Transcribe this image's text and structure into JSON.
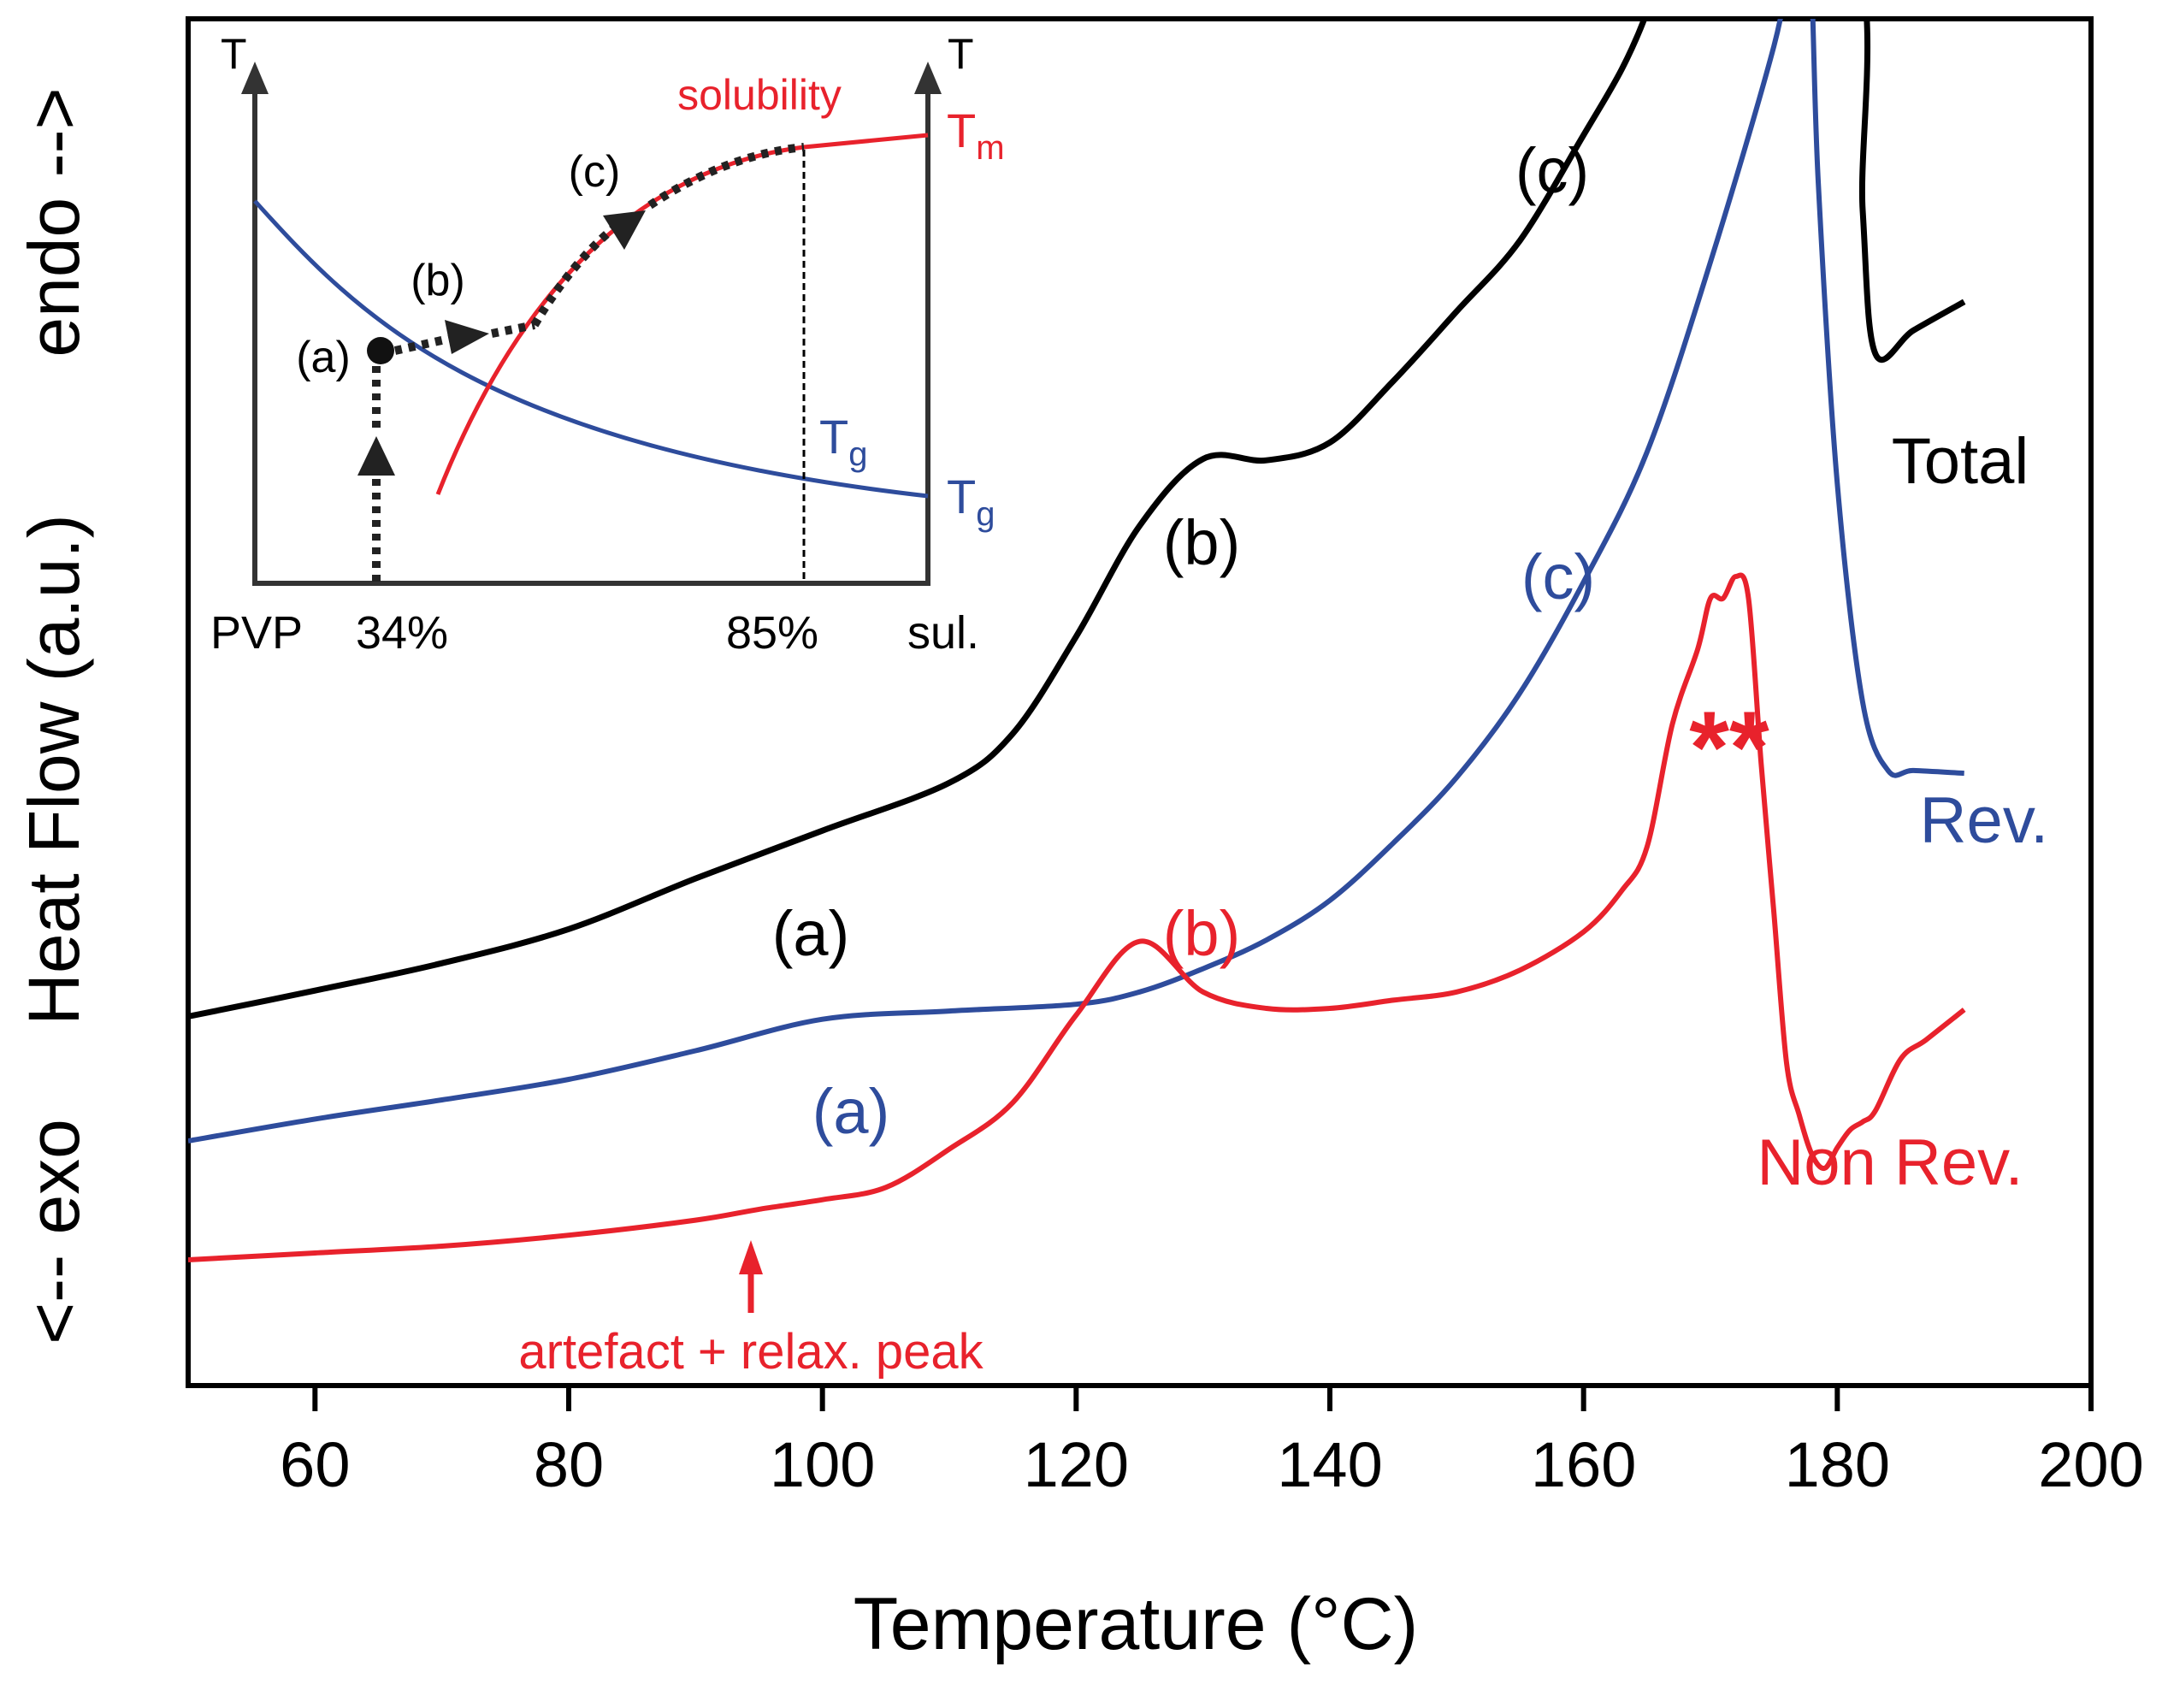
{
  "chart_data": {
    "type": "line",
    "title": "",
    "xlabel": "Temperature (°C)",
    "ylabel": "Heat Flow (a.u.)",
    "ylabel_top": "endo -->",
    "ylabel_bottom": "<-- exo",
    "xlim": [
      50,
      200
    ],
    "ylim": [
      0,
      100
    ],
    "xticks": [
      60,
      80,
      100,
      120,
      140,
      160,
      180,
      200
    ],
    "grid": false,
    "series": [
      {
        "name": "Total",
        "color": "#000000",
        "x": [
          50,
          60,
          70,
          80,
          90,
          100,
          110,
          115,
          120,
          125,
          130,
          135,
          140,
          145,
          150,
          155,
          160,
          163,
          165,
          166.5,
          181,
          182,
          183,
          186,
          190
        ],
        "y": [
          27,
          28.9,
          30.9,
          33.4,
          37.1,
          40.6,
          44.1,
          47.7,
          54.8,
          62.9,
          67.8,
          67.7,
          69,
          73.5,
          78.6,
          83.8,
          91.5,
          96.3,
          100.5,
          105,
          105,
          86,
          75.5,
          77.2,
          79.3
        ]
      },
      {
        "name": "Rev.",
        "color": "#2e4c9c",
        "x": [
          50,
          60,
          70,
          80,
          90,
          100,
          110,
          120,
          125,
          130,
          135,
          140,
          145,
          150,
          155,
          160,
          165,
          170,
          175,
          176.5,
          177.8,
          178.5,
          180,
          182,
          184,
          186,
          190
        ],
        "y": [
          17.9,
          19.5,
          20.9,
          22.4,
          24.5,
          26.8,
          27.4,
          27.9,
          28.8,
          30.5,
          32.6,
          35.5,
          39.7,
          44.5,
          50.7,
          58.8,
          68.3,
          82.2,
          98,
          105,
          105,
          88,
          66,
          50,
          45,
          45,
          44.8
        ]
      },
      {
        "name": "Non Rev.",
        "color": "#e8222c",
        "x": [
          50,
          60,
          70,
          80,
          90,
          95,
          100,
          105,
          110,
          115,
          120,
          125,
          130,
          135,
          140,
          145,
          150,
          155,
          160,
          163,
          165,
          167,
          169,
          170,
          171,
          172,
          173,
          174,
          175,
          176,
          177,
          178,
          179,
          180,
          181,
          182,
          183,
          185,
          187,
          190
        ],
        "y": [
          9.2,
          9.7,
          10.2,
          11,
          12.1,
          12.9,
          13.6,
          14.5,
          17.3,
          20.7,
          27.1,
          32.5,
          28.8,
          27.6,
          27.6,
          28.2,
          28.8,
          30.4,
          33.2,
          36.2,
          39.4,
          48.4,
          53.9,
          57.6,
          57.6,
          59.2,
          57.6,
          45.5,
          34.6,
          23.6,
          19.8,
          16.9,
          15.9,
          17.4,
          18.7,
          19.3,
          20.1,
          23.9,
          25.3,
          27.5
        ]
      }
    ],
    "annotations": {
      "total_a": "(a)",
      "total_b": "(b)",
      "total_c": "(c)",
      "total_label": "Total",
      "rev_a": "(a)",
      "rev_c": "(c)",
      "rev_label": "Rev.",
      "nonrev_b": "(b)",
      "nonrev_label": "Non Rev.",
      "stars": "**",
      "artefact": "artefact + relax. peak"
    },
    "inset": {
      "y_left_label": "T",
      "y_right_label": "T",
      "x_left_label": "PVP",
      "x_right_label": "sul.",
      "x_mark_34": "34%",
      "x_mark_85": "85%",
      "solubility_label": "solubility",
      "tm_main": "T",
      "tm_sub": "m",
      "tg_main": "T",
      "tg_sub": "g",
      "tg2_main": "T",
      "tg2_sub": "g",
      "label_a": "(a)",
      "label_b": "(b)",
      "label_c": "(c)"
    }
  }
}
